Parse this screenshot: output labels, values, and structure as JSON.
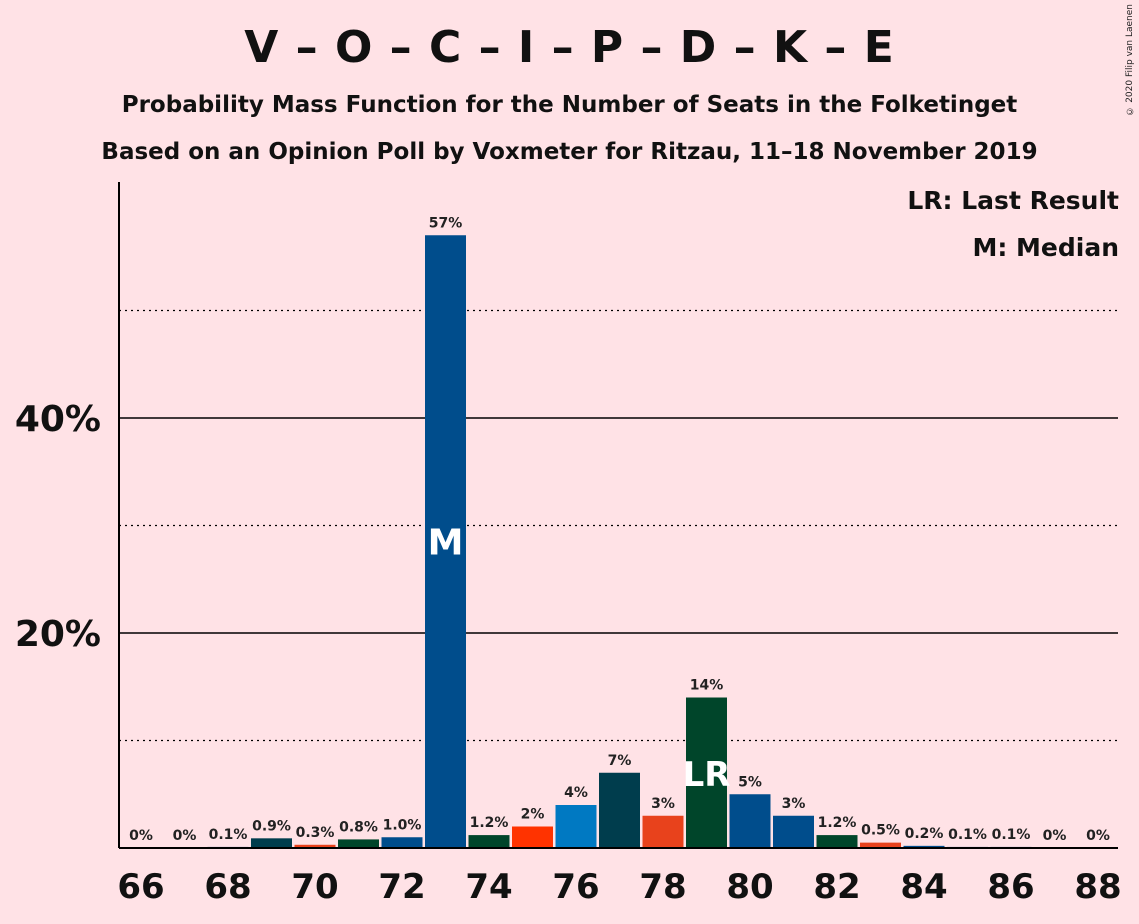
{
  "header": {
    "title": "V – O – C – I – P – D – K – E",
    "subtitle": "Probability Mass Function for the Number of Seats in the Folketinget",
    "subtitle2": "Based on an Opinion Poll by Voxmeter for Ritzau, 11–18 November 2019",
    "credit": "© 2020 Filip van Laenen"
  },
  "legend": {
    "last_result": "LR: Last Result",
    "median": "M: Median"
  },
  "chart_data": {
    "type": "bar",
    "categories": [
      66,
      67,
      68,
      69,
      70,
      71,
      72,
      73,
      74,
      75,
      76,
      77,
      78,
      79,
      80,
      81,
      82,
      83,
      84,
      85,
      86,
      87,
      88
    ],
    "values": [
      0,
      0,
      0.1,
      0.9,
      0.3,
      0.8,
      1.0,
      57,
      1.2,
      2,
      4,
      7,
      3,
      14,
      5,
      3,
      1.2,
      0.5,
      0.2,
      0.1,
      0.1,
      0,
      0
    ],
    "value_labels": [
      "0%",
      "0%",
      "0.1%",
      "0.9%",
      "0.3%",
      "0.8%",
      "1.0%",
      "57%",
      "1.2%",
      "2%",
      "4%",
      "7%",
      "3%",
      "14%",
      "5%",
      "3%",
      "1.2%",
      "0.5%",
      "0.2%",
      "0.1%",
      "0.1%",
      "0%",
      "0%"
    ],
    "bar_colors": [
      "#004D8C",
      "#E8421C",
      "#004D8C",
      "#003D4D",
      "#E8421C",
      "#00452A",
      "#004D8C",
      "#004D8C",
      "#00452A",
      "#FF3300",
      "#0079C2",
      "#003D4D",
      "#E8421C",
      "#00452A",
      "#004D8C",
      "#004D8C",
      "#00452A",
      "#E8421C",
      "#004D8C",
      "#004D8C",
      "#004D8C",
      "#004D8C",
      "#004D8C"
    ],
    "x_tick_labels": [
      "66",
      "68",
      "70",
      "72",
      "74",
      "76",
      "78",
      "80",
      "82",
      "84",
      "86",
      "88"
    ],
    "x_tick_values": [
      66,
      68,
      70,
      72,
      74,
      76,
      78,
      80,
      82,
      84,
      86,
      88
    ],
    "y_tick_labels": [
      "20%",
      "40%"
    ],
    "y_tick_values": [
      20,
      40
    ],
    "y_dotted_gridlines": [
      10,
      30,
      50
    ],
    "ylim": [
      0,
      62
    ],
    "median_seat": 73,
    "median_marker": "M",
    "last_result_seat": 79,
    "last_result_marker": "LR",
    "xlabel": "",
    "ylabel": ""
  }
}
